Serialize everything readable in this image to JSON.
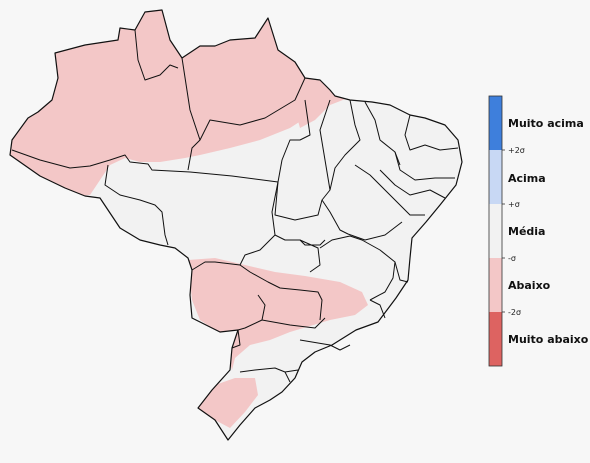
{
  "legend": {
    "categories": [
      {
        "label": "Muito acima",
        "color": "#3e7fdc"
      },
      {
        "label": "Acima",
        "color": "#c8d8f4"
      },
      {
        "label": "Média",
        "color": "#f2f2f2"
      },
      {
        "label": "Abaixo",
        "color": "#f3c7c7"
      },
      {
        "label": "Muito abaixo",
        "color": "#dd6361"
      }
    ],
    "ticks": [
      "+2σ",
      "+σ",
      "-σ",
      "-2σ"
    ]
  },
  "colors": {
    "border": "#111111",
    "background": "#f7f7f7"
  }
}
